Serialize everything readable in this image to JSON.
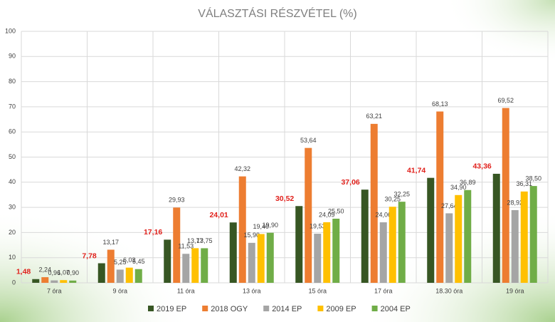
{
  "chart_data": {
    "type": "bar",
    "title": "VÁLASZTÁSI RÉSZVÉTEL (%)",
    "categories": [
      "7 óra",
      "9 óra",
      "11 óra",
      "13 óra",
      "15 óra",
      "17 óra",
      "18.30 óra",
      "19 óra"
    ],
    "series": [
      {
        "name": "2019 EP",
        "color": "#375623",
        "label_color": "#e0201b",
        "values": [
          1.48,
          7.78,
          17.16,
          24.01,
          30.52,
          37.06,
          41.74,
          43.36
        ],
        "value_labels": [
          "1,48",
          "7,78",
          "17,16",
          "24,01",
          "30,52",
          "37,06",
          "41,74",
          "43,36"
        ]
      },
      {
        "name": "2018 OGY",
        "color": "#ed7d31",
        "values": [
          2.24,
          13.17,
          29.93,
          42.32,
          53.64,
          63.21,
          68.13,
          69.52
        ],
        "value_labels": [
          "2,24",
          "13,17",
          "29,93",
          "42,32",
          "53,64",
          "63,21",
          "68,13",
          "69,52"
        ]
      },
      {
        "name": "2014 EP",
        "color": "#a5a5a5",
        "values": [
          0.96,
          5.25,
          11.53,
          15.9,
          19.53,
          24.06,
          27.64,
          28.92
        ],
        "value_labels": [
          "0,96",
          "5,25",
          "11,53",
          "15,90",
          "19,53",
          "24,06",
          "27,64",
          "28,92"
        ]
      },
      {
        "name": "2009 EP",
        "color": "#ffc000",
        "values": [
          1.07,
          6.03,
          13.77,
          19.4,
          24.09,
          30.25,
          34.9,
          36.31
        ],
        "value_labels": [
          "1,07",
          "6,03",
          "13,77",
          "19,40",
          "24,09",
          "30,25",
          "34,90",
          "36,31"
        ]
      },
      {
        "name": "2004 EP",
        "color": "#70ad47",
        "values": [
          0.9,
          5.45,
          13.75,
          19.9,
          25.5,
          32.25,
          36.89,
          38.5
        ],
        "value_labels": [
          "0,90",
          "5,45",
          "13,75",
          "19,90",
          "25,50",
          "32,25",
          "36,89",
          "38,50"
        ]
      }
    ],
    "ylim": [
      0,
      100
    ],
    "yticks": [
      0,
      10,
      20,
      30,
      40,
      50,
      60,
      70,
      80,
      90,
      100
    ],
    "grid": true
  }
}
